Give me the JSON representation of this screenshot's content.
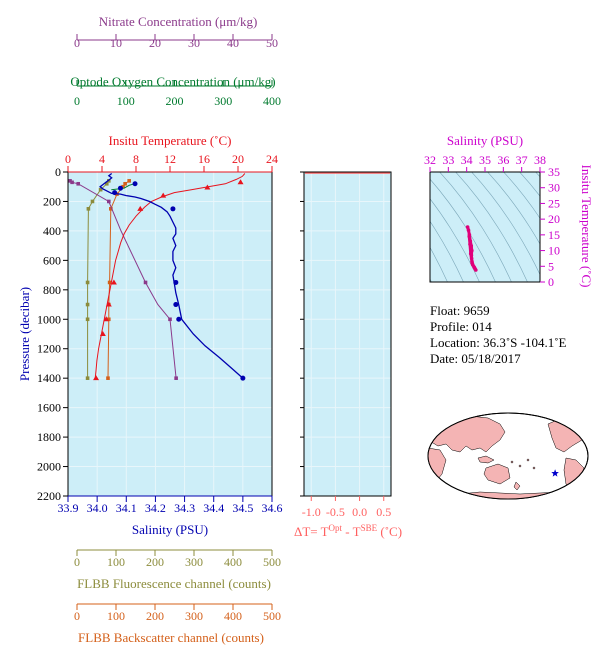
{
  "colors": {
    "nitrate": "#8b3a8b",
    "oxygen": "#007a2e",
    "temperature": "#e8141e",
    "salinity": "#0000b0",
    "fluorescence": "#8c8c3c",
    "backscatter": "#d4601a",
    "delta_t": "#ff6060",
    "ts_axis": "#cc00cc",
    "plot_bg": "#cdeef8",
    "map_land": "#f4b4b4"
  },
  "axes": {
    "nitrate": {
      "label": "Nitrate Concentration (μm/kg)",
      "ticks": [
        "0",
        "10",
        "20",
        "30",
        "40",
        "50"
      ]
    },
    "oxygen": {
      "label": "Optode Oxygen Concentration (μm/kg)",
      "ticks": [
        "0",
        "100",
        "200",
        "300",
        "400"
      ]
    },
    "temperature": {
      "label": "Insitu Temperature (˚C)",
      "ticks": [
        "0",
        "4",
        "8",
        "12",
        "16",
        "20",
        "24"
      ]
    },
    "salinity": {
      "label": "Salinity (PSU)",
      "ticks": [
        "33.9",
        "34.0",
        "34.1",
        "34.2",
        "34.3",
        "34.4",
        "34.5",
        "34.6"
      ]
    },
    "pressure": {
      "label": "Pressure (decibar)",
      "ticks": [
        "0",
        "200",
        "400",
        "600",
        "800",
        "1000",
        "1200",
        "1400",
        "1600",
        "1800",
        "2000",
        "2200"
      ]
    },
    "fluorescence": {
      "label": "FLBB Fluorescence channel (counts)",
      "ticks": [
        "0",
        "100",
        "200",
        "300",
        "400",
        "500"
      ]
    },
    "backscatter": {
      "label": "FLBB Backscatter channel (counts)",
      "ticks": [
        "0",
        "100",
        "200",
        "300",
        "400",
        "500"
      ]
    },
    "delta_t": {
      "label": "ΔT= T",
      "sup1": "Opt",
      "mid": " - T",
      "sup2": "SBE",
      "unit": " (˚C)",
      "ticks": [
        "-1.0",
        "-0.5",
        "0.0",
        "0.5"
      ]
    },
    "ts_salinity": {
      "label": "Salinity (PSU)",
      "ticks": [
        "32",
        "33",
        "34",
        "35",
        "36",
        "37",
        "38"
      ]
    },
    "ts_temperature": {
      "label": "Insitu Temperature (˚C)",
      "ticks": [
        "0",
        "5",
        "10",
        "15",
        "20",
        "25",
        "30",
        "35"
      ]
    }
  },
  "metadata": {
    "float": "Float:  9659",
    "profile": "Profile:  014",
    "location": "Location:  36.3˚S  -104.1˚E",
    "date": "Date:  05/18/2017"
  },
  "chart_data": [
    {
      "type": "line",
      "name": "Insitu Temperature",
      "x_axis": "temperature",
      "xlim": [
        0,
        24
      ],
      "ylim": [
        2200,
        0
      ],
      "x": [
        20.8,
        20.5,
        19.8,
        18.5,
        16.5,
        14.5,
        12.5,
        11.0,
        9.8,
        9.0,
        8.0,
        7.2,
        6.6,
        6.2,
        5.9,
        5.6,
        5.4,
        5.2,
        5.0,
        4.8,
        4.6,
        4.4,
        4.2,
        4.0,
        3.8,
        3.6,
        3.4,
        3.3,
        3.2
      ],
      "y": [
        10,
        30,
        50,
        80,
        100,
        120,
        140,
        170,
        200,
        240,
        300,
        360,
        420,
        480,
        540,
        600,
        660,
        720,
        780,
        840,
        900,
        960,
        1020,
        1080,
        1140,
        1200,
        1280,
        1350,
        1400
      ],
      "markers_x": [
        20.3,
        16.4,
        11.2,
        8.5,
        5.4,
        4.8,
        4.5,
        4.1,
        3.3
      ],
      "markers_y": [
        70,
        105,
        160,
        250,
        750,
        900,
        1000,
        1100,
        1400
      ]
    },
    {
      "type": "line",
      "name": "Salinity",
      "x_axis": "salinity",
      "xlim": [
        33.9,
        34.6
      ],
      "ylim": [
        2200,
        0
      ],
      "x": [
        34.05,
        34.04,
        34.05,
        34.04,
        34.03,
        34.02,
        34.01,
        34.02,
        34.03,
        34.04,
        34.05,
        34.08,
        34.1,
        34.13,
        34.15,
        34.18,
        34.2,
        34.22,
        34.24,
        34.25,
        34.26,
        34.27,
        34.27,
        34.26,
        34.27,
        34.26,
        34.26,
        34.27,
        34.26,
        34.265,
        34.27,
        34.28,
        34.29,
        34.33,
        34.37,
        34.42,
        34.46,
        34.5
      ],
      "y": [
        10,
        25,
        40,
        55,
        70,
        85,
        100,
        115,
        125,
        135,
        145,
        150,
        160,
        170,
        180,
        200,
        220,
        240,
        270,
        300,
        340,
        380,
        420,
        450,
        500,
        540,
        600,
        650,
        700,
        760,
        820,
        900,
        1000,
        1100,
        1180,
        1260,
        1330,
        1400
      ],
      "markers_x": [
        34.13,
        34.08,
        34.06,
        34.26,
        34.27,
        34.27,
        34.28,
        34.5
      ],
      "markers_y": [
        80,
        110,
        140,
        250,
        750,
        900,
        1000,
        1400
      ]
    },
    {
      "type": "line",
      "name": "Optode Oxygen Concentration",
      "x_axis": "oxygen",
      "xlim": [
        0,
        400
      ],
      "ylim": [
        2200,
        0
      ],
      "x": [
        130,
        120,
        115,
        110,
        85
      ],
      "y": [
        80,
        90,
        100,
        110,
        120
      ]
    },
    {
      "type": "line",
      "name": "Nitrate Concentration",
      "x_axis": "nitrate",
      "xlim": [
        0,
        50
      ],
      "ylim": [
        2200,
        0
      ],
      "x": [
        0.5,
        1.0,
        2.5,
        10,
        13,
        19,
        22,
        25,
        26.5
      ],
      "y": [
        60,
        70,
        80,
        200,
        400,
        750,
        900,
        1000,
        1400
      ],
      "markers_x": [
        0.5,
        1.0,
        2.5,
        10,
        19,
        25,
        26.5
      ],
      "markers_y": [
        60,
        70,
        80,
        200,
        750,
        1000,
        1400
      ]
    },
    {
      "type": "line",
      "name": "FLBB Fluorescence channel",
      "x_axis": "fluorescence",
      "xlim": [
        0,
        500
      ],
      "ylim": [
        2200,
        0
      ],
      "x": [
        100,
        95,
        80,
        60,
        50,
        48,
        48,
        48,
        48
      ],
      "y": [
        60,
        80,
        120,
        200,
        250,
        750,
        900,
        1000,
        1400
      ],
      "markers_x": [
        100,
        95,
        80,
        60,
        50,
        48,
        48,
        48,
        48
      ],
      "markers_y": [
        60,
        80,
        120,
        200,
        250,
        750,
        900,
        1000,
        1400
      ]
    },
    {
      "type": "line",
      "name": "FLBB Backscatter channel",
      "x_axis": "backscatter",
      "xlim": [
        0,
        500
      ],
      "ylim": [
        2200,
        0
      ],
      "x": [
        150,
        140,
        135,
        120,
        105,
        102,
        100,
        100,
        98
      ],
      "y": [
        60,
        80,
        100,
        150,
        250,
        750,
        900,
        1000,
        1400
      ],
      "markers_x": [
        150,
        140,
        135,
        120,
        105,
        102,
        100,
        100,
        98
      ],
      "markers_y": [
        60,
        80,
        100,
        150,
        250,
        750,
        900,
        1000,
        1400
      ]
    },
    {
      "type": "scatter",
      "name": "T-S diagram",
      "xlim": [
        32,
        38
      ],
      "ylim": [
        0,
        35
      ],
      "x": [
        34.05,
        34.1,
        34.15,
        34.2,
        34.25,
        34.28,
        34.26,
        34.27,
        34.29,
        34.33,
        34.4,
        34.46,
        34.5,
        34.42,
        34.3,
        34.22,
        34.18,
        34.14
      ],
      "y": [
        17.5,
        16.5,
        15.0,
        13.0,
        11.5,
        10.0,
        8.5,
        7.5,
        6.5,
        5.5,
        4.8,
        4.2,
        3.8,
        4.6,
        6.0,
        9.0,
        12.0,
        14.5
      ]
    },
    {
      "type": "scatter",
      "name": "Float location",
      "x": [
        -104.1
      ],
      "y": [
        -36.3
      ]
    }
  ]
}
